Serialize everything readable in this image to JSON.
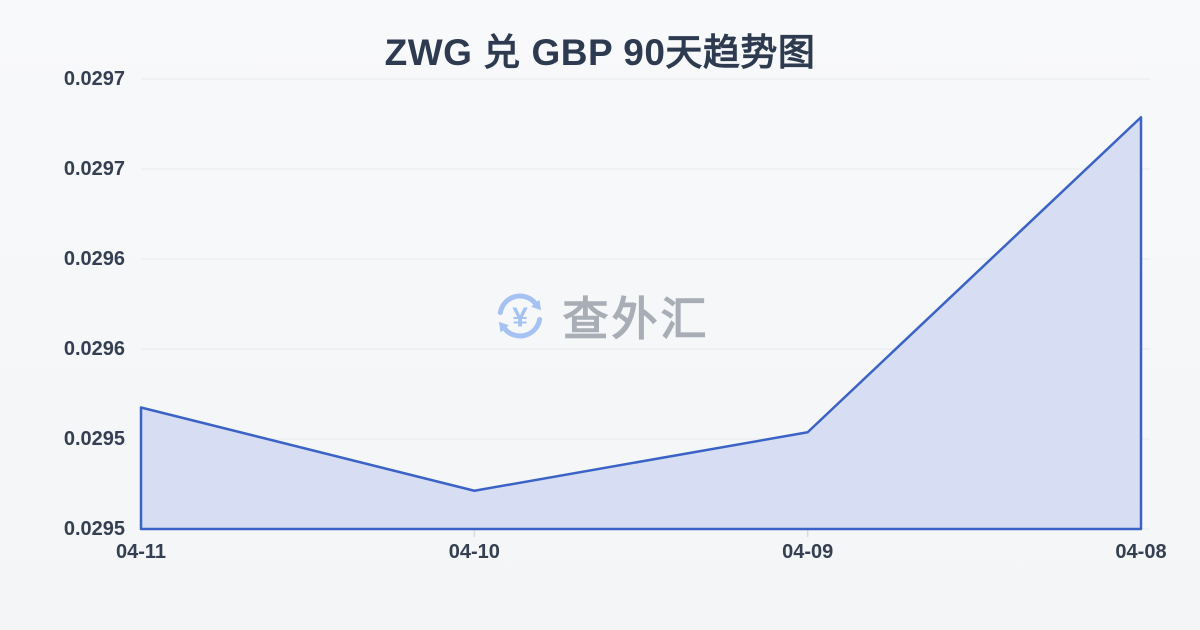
{
  "title": "ZWG 兑 GBP 90天趋势图",
  "watermark": {
    "icon": "yuan-exchange-icon",
    "icon_glyph": "¥",
    "text": "查外汇"
  },
  "colors": {
    "background_top": "#f8f9fb",
    "background_bottom": "#f3f5f7",
    "title_text": "#2d3a50",
    "axis_text": "#353f52",
    "line": "#3b63c6",
    "area_fill": "#d7def3",
    "gridline": "#e8eaee",
    "tick": "#d8dbdf",
    "watermark_text": "#a9aeb6",
    "watermark_icon": "#a5c2f2"
  },
  "chart_data": {
    "type": "area",
    "title": "ZWG 兑 GBP 90天趋势图",
    "categories": [
      "04-11",
      "04-10",
      "04-09",
      "04-08"
    ],
    "values": [
      0.029554,
      0.029517,
      0.029543,
      0.029683
    ],
    "ylim": [
      0.0295,
      0.0297
    ],
    "y_ticks": [
      0.0295,
      0.02954,
      0.02958,
      0.02962,
      0.02966,
      0.0297
    ],
    "y_tick_labels": [
      "0.0295",
      "0.0295",
      "0.0296",
      "0.0296",
      "0.0297",
      "0.0297"
    ],
    "grid": true,
    "legend": false,
    "x_axis_order": "dates descending left to right"
  }
}
